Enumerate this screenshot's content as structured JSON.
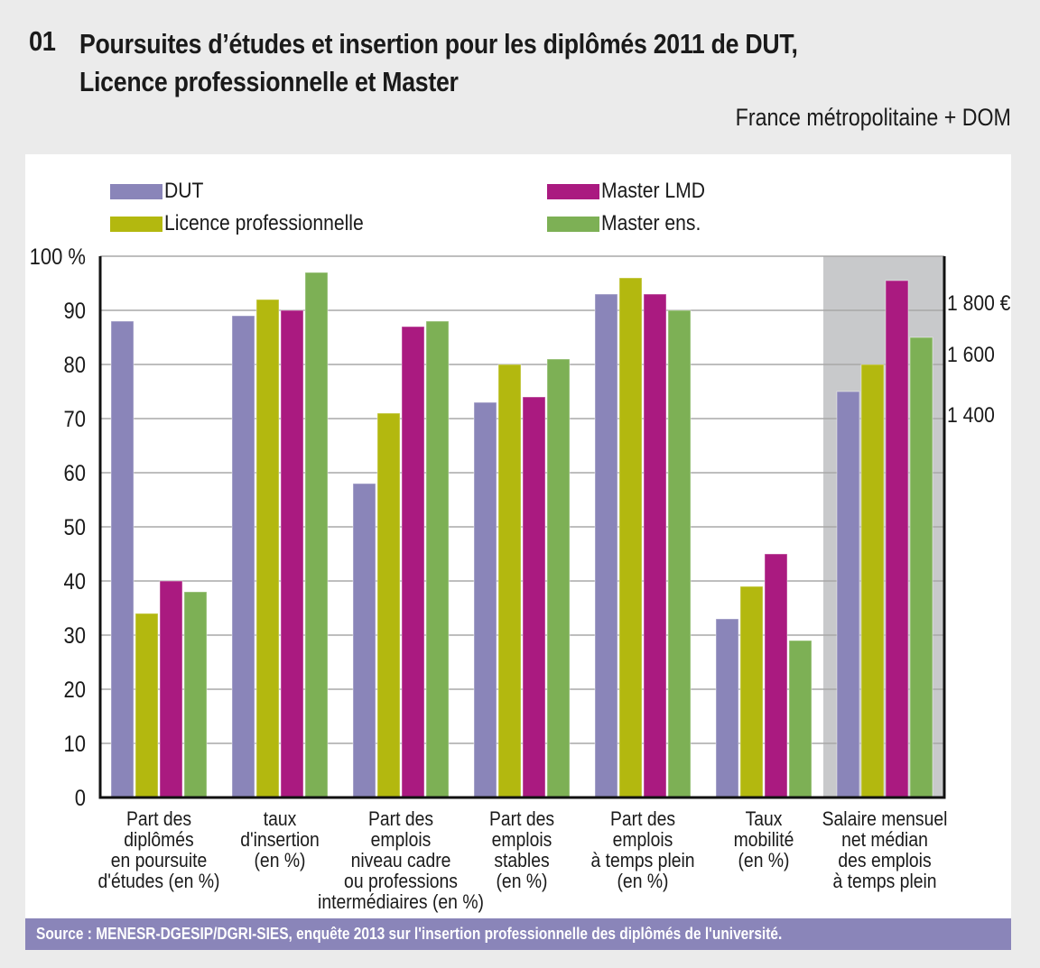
{
  "header": {
    "number": "01",
    "title_line1": "Poursuites d’études et insertion pour les diplômés 2011 de DUT,",
    "title_line2": "Licence professionnelle et Master",
    "subtitle": "France métropolitaine + DOM"
  },
  "source": "Source : MENESR-DGESIP/DGRI-SIES, enquête 2013 sur l'insertion professionnelle des diplômés de l'université.",
  "colors": {
    "DUT": "#8a85b9",
    "Licence professionnelle": "#b3b80f",
    "Master LMD": "#aa1a80",
    "Master ens.": "#7db055",
    "salary_background": "#c8c9cb",
    "source_bar": "#8a85b9"
  },
  "chart_data": {
    "type": "bar",
    "title": "Poursuites d’études et insertion pour les diplômés 2011 de DUT, Licence professionnelle et Master",
    "subtitle": "France métropolitaine + DOM",
    "xlabel": "",
    "ylabel": "%",
    "ylim": [
      0,
      100
    ],
    "yticks": [
      0,
      10,
      20,
      30,
      40,
      50,
      60,
      70,
      80,
      90,
      100
    ],
    "ytick_labels": [
      "0",
      "10",
      "20",
      "30",
      "40",
      "50",
      "60",
      "70",
      "80",
      "90",
      "100 %"
    ],
    "y2_tick_labels": [
      "1 800 €",
      "1 600",
      "1 400"
    ],
    "y2_ticks_note": "right axis applies to last category (salary, €)",
    "grid": true,
    "legend_position": "top",
    "categories": [
      [
        "Part des",
        "diplômés",
        "en poursuite",
        "d'études (en %)"
      ],
      [
        "taux",
        "d'insertion",
        "(en %)"
      ],
      [
        "Part des",
        "emplois",
        "niveau cadre",
        "ou professions",
        "intermédiaires (en %)"
      ],
      [
        "Part des",
        "emplois",
        "stables",
        "(en %)"
      ],
      [
        "Part des",
        "emplois",
        "à temps plein",
        "(en %)"
      ],
      [
        "Taux",
        "mobilité",
        "(en %)"
      ],
      [
        "Salaire mensuel",
        "net médian",
        "des emplois",
        "à temps plein"
      ]
    ],
    "series": [
      {
        "name": "DUT",
        "values": [
          88,
          89,
          58,
          73,
          93,
          33,
          75
        ],
        "salary_eur": 1480
      },
      {
        "name": "Licence professionnelle",
        "values": [
          34,
          92,
          71,
          80,
          96,
          39,
          80
        ],
        "salary_eur": 1570
      },
      {
        "name": "Master LMD",
        "values": [
          40,
          90,
          87,
          74,
          93,
          45,
          95.5
        ],
        "salary_eur": 1880
      },
      {
        "name": "Master ens.",
        "values": [
          38,
          97,
          88,
          81,
          90,
          29,
          85
        ],
        "salary_eur": 1660
      }
    ]
  },
  "legend": [
    {
      "label": "DUT"
    },
    {
      "label": "Licence professionnelle"
    },
    {
      "label": "Master LMD"
    },
    {
      "label": "Master ens."
    }
  ]
}
